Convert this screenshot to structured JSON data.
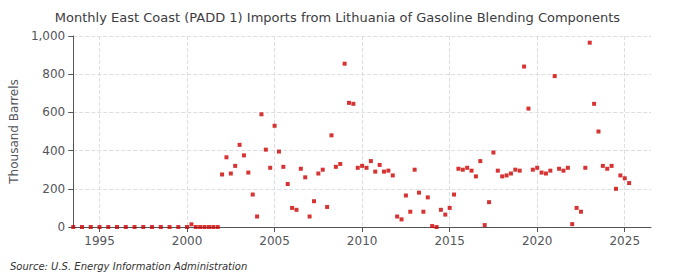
{
  "chart_data": {
    "type": "scatter",
    "title": "Monthly East Coast (PADD 1) Imports from Lithuania of Gasoline Blending Components",
    "ylabel": "Thousand Barrels",
    "annotations": [
      "Source: U.S. Energy Information Administration"
    ],
    "color": "#cc0000",
    "marker": "square",
    "grid": true,
    "xlim": [
      1993.5,
      2026.5
    ],
    "xticks": [
      1995,
      2000,
      2005,
      2010,
      2015,
      2020,
      2025
    ],
    "ylim": [
      0,
      1000
    ],
    "yticks": [
      0,
      200,
      400,
      600,
      800,
      {
        "value": 1000,
        "label": "1,000"
      }
    ],
    "x": [
      1993.5,
      1994.0,
      1994.5,
      1995.0,
      1995.5,
      1996.0,
      1996.5,
      1997.0,
      1997.5,
      1998.0,
      1998.5,
      1999.0,
      1999.5,
      2000.0,
      2000.25,
      2000.5,
      2000.75,
      2001.0,
      2001.25,
      2001.5,
      2001.75,
      2002.0,
      2002.25,
      2002.5,
      2002.75,
      2003.0,
      2003.25,
      2003.5,
      2003.75,
      2004.0,
      2004.25,
      2004.5,
      2004.75,
      2005.0,
      2005.25,
      2005.5,
      2005.75,
      2006.0,
      2006.25,
      2006.5,
      2006.75,
      2007.0,
      2007.25,
      2007.5,
      2007.75,
      2008.0,
      2008.25,
      2008.5,
      2008.75,
      2009.0,
      2009.25,
      2009.5,
      2009.75,
      2010.0,
      2010.25,
      2010.5,
      2010.75,
      2011.0,
      2011.25,
      2011.5,
      2011.75,
      2012.0,
      2012.25,
      2012.5,
      2012.75,
      2013.0,
      2013.25,
      2013.5,
      2013.75,
      2014.0,
      2014.25,
      2014.5,
      2014.75,
      2015.0,
      2015.25,
      2015.5,
      2015.75,
      2016.0,
      2016.25,
      2016.5,
      2016.75,
      2017.0,
      2017.25,
      2017.5,
      2017.75,
      2018.0,
      2018.25,
      2018.5,
      2018.75,
      2019.0,
      2019.25,
      2019.5,
      2019.75,
      2020.0,
      2020.25,
      2020.5,
      2020.75,
      2021.0,
      2021.25,
      2021.5,
      2021.75,
      2022.0,
      2022.25,
      2022.5,
      2022.75,
      2023.0,
      2023.25,
      2023.5,
      2023.75,
      2024.0,
      2024.25,
      2024.5,
      2024.75,
      2025.0,
      2025.25
    ],
    "values": [
      0,
      0,
      0,
      0,
      0,
      0,
      0,
      0,
      0,
      0,
      0,
      0,
      0,
      0,
      14,
      0,
      0,
      0,
      0,
      0,
      0,
      275,
      365,
      280,
      320,
      430,
      375,
      285,
      170,
      55,
      590,
      405,
      310,
      530,
      395,
      315,
      225,
      100,
      90,
      305,
      260,
      55,
      135,
      280,
      300,
      105,
      480,
      315,
      330,
      855,
      650,
      645,
      310,
      320,
      310,
      345,
      290,
      325,
      290,
      295,
      270,
      55,
      40,
      165,
      80,
      300,
      180,
      80,
      155,
      5,
      0,
      90,
      65,
      100,
      170,
      305,
      300,
      310,
      295,
      265,
      345,
      10,
      130,
      390,
      295,
      265,
      270,
      280,
      300,
      295,
      840,
      620,
      300,
      310,
      285,
      280,
      295,
      790,
      305,
      295,
      310,
      15,
      100,
      80,
      310,
      965,
      645,
      500,
      320,
      305,
      320,
      200,
      270,
      255,
      230
    ]
  }
}
